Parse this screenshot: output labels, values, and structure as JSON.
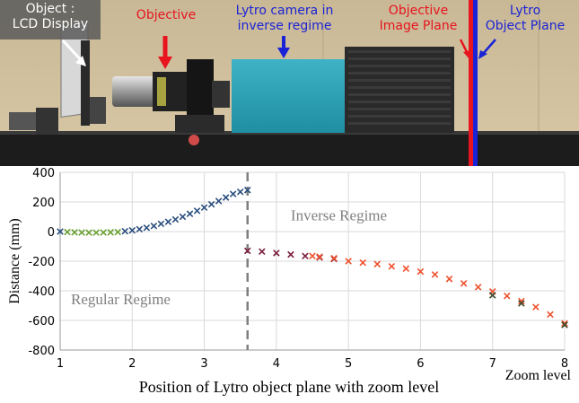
{
  "photo": {
    "object_label_line1": "Object :",
    "object_label_line2": "LCD Display",
    "objective_label": "Objective",
    "camera_label_line1": "Lytro camera in",
    "camera_label_line2": "inverse regime",
    "image_plane_label_line1": "Objective",
    "image_plane_label_line2": "Image Plane",
    "object_plane_label_line1": "Lytro",
    "object_plane_label_line2": "Object Plane",
    "colors": {
      "red": "#e8141e",
      "blue": "#1a23d6"
    }
  },
  "chart_data": {
    "type": "scatter",
    "title": "",
    "xlabel": "Position of Lytro object plane with zoom level",
    "xlabel_suffix": "Zoom level",
    "ylabel": "Distance (mm)",
    "xlim": [
      1,
      8
    ],
    "ylim": [
      -800,
      400
    ],
    "x_ticks": [
      "1",
      "2",
      "3",
      "4",
      "5",
      "6",
      "7",
      "8"
    ],
    "y_ticks": [
      "400",
      "200",
      "0",
      "-200",
      "-400",
      "-600",
      "-800"
    ],
    "y_tick_values": [
      400,
      200,
      0,
      -200,
      -400,
      -600,
      -800
    ],
    "grid": true,
    "legend": "none",
    "divider_x": 3.6,
    "annotations": {
      "inverse": "Inverse Regime",
      "regular": "Regular Regime"
    },
    "series": [
      {
        "color": "#2b4f7e",
        "points": [
          [
            1.0,
            0
          ],
          [
            1.9,
            2
          ],
          [
            2.0,
            8
          ],
          [
            2.1,
            16
          ],
          [
            2.2,
            26
          ],
          [
            2.3,
            38
          ],
          [
            2.4,
            52
          ],
          [
            2.5,
            66
          ],
          [
            2.6,
            82
          ],
          [
            2.7,
            100
          ],
          [
            2.8,
            120
          ],
          [
            2.9,
            140
          ],
          [
            3.0,
            162
          ],
          [
            3.1,
            184
          ],
          [
            3.2,
            206
          ],
          [
            3.3,
            230
          ],
          [
            3.4,
            254
          ],
          [
            3.5,
            268
          ],
          [
            3.6,
            280
          ]
        ]
      },
      {
        "color": "#6aa033",
        "points": [
          [
            1.1,
            -3
          ],
          [
            1.2,
            -5
          ],
          [
            1.3,
            -6
          ],
          [
            1.4,
            -7
          ],
          [
            1.5,
            -7
          ],
          [
            1.6,
            -6
          ],
          [
            1.7,
            -5
          ],
          [
            1.8,
            -3
          ]
        ]
      },
      {
        "color": "#7a1e3c",
        "points": [
          [
            3.6,
            -130
          ],
          [
            3.8,
            -135
          ],
          [
            4.0,
            -145
          ],
          [
            4.2,
            -155
          ],
          [
            4.4,
            -165
          ],
          [
            4.6,
            -175
          ],
          [
            4.8,
            -185
          ]
        ]
      },
      {
        "color": "#f0502d",
        "points": [
          [
            4.5,
            -165
          ],
          [
            4.6,
            -170
          ],
          [
            4.8,
            -180
          ],
          [
            5.0,
            -200
          ],
          [
            5.2,
            -210
          ],
          [
            5.4,
            -220
          ],
          [
            5.6,
            -235
          ],
          [
            5.8,
            -250
          ],
          [
            6.0,
            -270
          ],
          [
            6.2,
            -290
          ],
          [
            6.4,
            -320
          ],
          [
            6.6,
            -350
          ],
          [
            6.8,
            -375
          ],
          [
            7.0,
            -405
          ],
          [
            7.2,
            -435
          ],
          [
            7.4,
            -470
          ],
          [
            7.6,
            -510
          ],
          [
            7.8,
            -560
          ],
          [
            8.0,
            -620
          ]
        ]
      },
      {
        "color": "#3c4a2a",
        "points": [
          [
            7.0,
            -430
          ],
          [
            7.4,
            -485
          ],
          [
            8.0,
            -630
          ]
        ]
      }
    ]
  }
}
